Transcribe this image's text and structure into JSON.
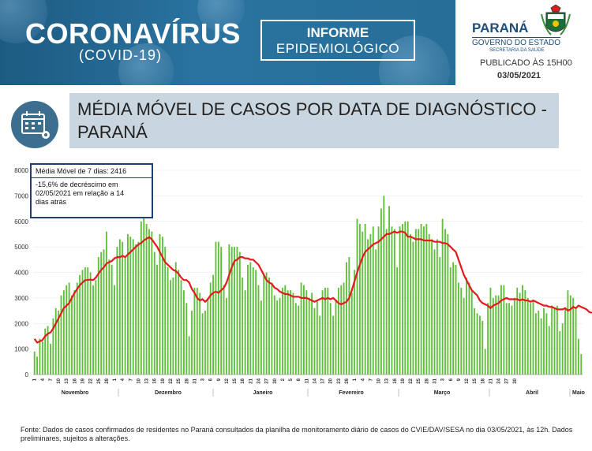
{
  "header": {
    "title": "CORONAVÍRUS",
    "subtitle": "(COVID-19)",
    "report_line1": "INFORME",
    "report_line2": "EPIDEMIOLÓGICO",
    "state": "PARANÁ",
    "government": "GOVERNO DO ESTADO",
    "secretariat": "SECRETARIA DA SAÚDE",
    "published": "PUBLICADO ÀS 15H00",
    "date": "03/05/2021"
  },
  "section_title": "MÉDIA MÓVEL DE CASOS POR DATA DE DIAGNÓSTICO - PARANÁ",
  "annotation": {
    "line1": "Média Móvel de 7 dias: 2416",
    "line2": "-15,6% de decréscimo em\n02/05/2021  em relação a 14\ndias atrás"
  },
  "footer": "Fonte: Dados de casos confirmados de residentes no Paraná consultados da planilha de monitoramento diário de casos do CVIE/DAV/SESA no dia 03/05/2021, às 12h. Dados preliminares, sujeitos a alterações.",
  "colors": {
    "bar": "#5fbf3a",
    "line": "#e41a1c"
  },
  "chart_data": {
    "type": "bar",
    "series": [
      {
        "values": [
          900,
          700,
          1400,
          1300,
          1800,
          1900,
          1200,
          2200,
          2600,
          2500,
          3100,
          3300,
          3500,
          3600,
          3100,
          3300,
          3600,
          3900,
          4100,
          4200,
          4200,
          4000,
          3500,
          3700,
          4600,
          4800,
          4900,
          5600,
          4500,
          4300,
          3500,
          5000,
          5300,
          5200,
          4600,
          5500,
          5400,
          5300,
          5100,
          5200,
          6000,
          6500,
          5900,
          5700,
          5600,
          4800,
          4300,
          5500,
          5400,
          5000,
          4200,
          3700,
          3800,
          4400,
          4100,
          3700,
          3300,
          2800,
          1500,
          2500,
          3400,
          3400,
          3200,
          2400,
          2500,
          3000,
          3600,
          3900,
          5200,
          5200,
          5000,
          3500,
          3000,
          5100,
          5000,
          5000,
          5000,
          4800,
          3800,
          3300,
          4300,
          4400,
          4200,
          4100,
          3500,
          2900,
          3900,
          4000,
          3800,
          3600,
          3100,
          2900,
          3000,
          3400,
          3500,
          3300,
          3300,
          3200,
          2800,
          2700,
          3600,
          3500,
          3300,
          3000,
          3200,
          2600,
          2900,
          2300,
          3300,
          3400,
          3400,
          2800,
          2300,
          2900,
          3400,
          3500,
          3600,
          4400,
          4600,
          3200,
          4100,
          6100,
          5900,
          5600,
          5900,
          5300,
          5500,
          5800,
          4900,
          5800,
          6500,
          7000,
          5700,
          6600,
          5800,
          5700,
          4200,
          5800,
          5900,
          6000,
          6000,
          5500,
          5200,
          5700,
          5700,
          5900,
          5800,
          5900,
          5500,
          5300,
          4900,
          5300,
          4600,
          6100,
          5700,
          5500,
          4200,
          4400,
          4300,
          3600,
          3400,
          3000,
          3800,
          3600,
          3300,
          2600,
          2400,
          2300,
          2100,
          1000,
          2800,
          3400,
          3000,
          3100,
          3100,
          3500,
          3500,
          2800,
          2800,
          2700,
          3000,
          3400,
          3200,
          3500,
          3300,
          3000,
          2800,
          2900,
          2400,
          2500,
          2200,
          2600,
          2400,
          1900,
          2700,
          2600,
          2700,
          1700,
          2000,
          2600,
          3300,
          3100,
          3000,
          2600,
          1400,
          800
        ]
      },
      {
        "values": [
          1400,
          1250,
          1300,
          1350,
          1500,
          1600,
          1650,
          1800,
          2000,
          2200,
          2400,
          2600,
          2700,
          2800,
          3000,
          3200,
          3350,
          3500,
          3600,
          3700,
          3700,
          3720,
          3700,
          3800,
          3950,
          4100,
          4200,
          4350,
          4400,
          4450,
          4550,
          4600,
          4600,
          4650,
          4600,
          4700,
          4800,
          4900,
          5000,
          5100,
          5150,
          5250,
          5320,
          5380,
          5300,
          5150,
          5000,
          4800,
          4600,
          4400,
          4300,
          4200,
          4100,
          4050,
          3950,
          3800,
          3700,
          3700,
          3600,
          3350,
          3200,
          3000,
          2900,
          2950,
          2850,
          2950,
          3100,
          3200,
          3250,
          3200,
          3300,
          3400,
          3600,
          3900,
          4200,
          4450,
          4500,
          4600,
          4600,
          4550,
          4550,
          4500,
          4500,
          4400,
          4300,
          4100,
          3900,
          3700,
          3600,
          3550,
          3400,
          3350,
          3250,
          3200,
          3150,
          3150,
          3100,
          3050,
          3050,
          3050,
          3000,
          3000,
          3000,
          2950,
          2900,
          2850,
          2900,
          2950,
          3000,
          2950,
          3000,
          2950,
          3000,
          2900,
          2800,
          2750,
          2800,
          2850,
          3000,
          3300,
          3650,
          4000,
          4300,
          4600,
          4800,
          4900,
          5000,
          5100,
          5150,
          5200,
          5300,
          5400,
          5500,
          5500,
          5550,
          5600,
          5550,
          5600,
          5600,
          5550,
          5400,
          5400,
          5350,
          5300,
          5300,
          5300,
          5250,
          5250,
          5250,
          5250,
          5200,
          5200,
          5200,
          5150,
          5150,
          5100,
          5000,
          4900,
          4800,
          4500,
          4200,
          3900,
          3700,
          3500,
          3300,
          3200,
          3100,
          2900,
          2800,
          2750,
          2700,
          2600,
          2700,
          2750,
          2800,
          2900,
          2950,
          3000,
          2950,
          2950,
          2950,
          2950,
          2900,
          2950,
          2900,
          2900,
          2850,
          2900,
          2850,
          2800,
          2750,
          2700,
          2700,
          2650,
          2650,
          2600,
          2550,
          2550,
          2550,
          2600,
          2500,
          2550,
          2650,
          2600,
          2700,
          2650,
          2600,
          2550,
          2450,
          2416
        ]
      }
    ],
    "y_ticks": [
      0,
      1000,
      2000,
      3000,
      4000,
      5000,
      6000,
      7000,
      8000
    ],
    "ylim": [
      0,
      8000
    ],
    "day_labels": [
      "1",
      "4",
      "7",
      "10",
      "13",
      "16",
      "19",
      "22",
      "25",
      "28",
      "1",
      "4",
      "7",
      "10",
      "13",
      "16",
      "19",
      "22",
      "25",
      "28",
      "31",
      "3",
      "6",
      "9",
      "12",
      "15",
      "18",
      "21",
      "24",
      "27",
      "30",
      "2",
      "5",
      "8",
      "11",
      "14",
      "17",
      "20",
      "23",
      "26",
      "1",
      "4",
      "7",
      "10",
      "13",
      "16",
      "19",
      "22",
      "25",
      "28",
      "31",
      "3",
      "6",
      "9",
      "12",
      "15",
      "18",
      "21",
      "24",
      "27",
      "30"
    ],
    "months": [
      "Novembro",
      "Dezembro",
      "Janeiro",
      "Fevereiro",
      "Março",
      "Abril",
      "Maio"
    ]
  }
}
